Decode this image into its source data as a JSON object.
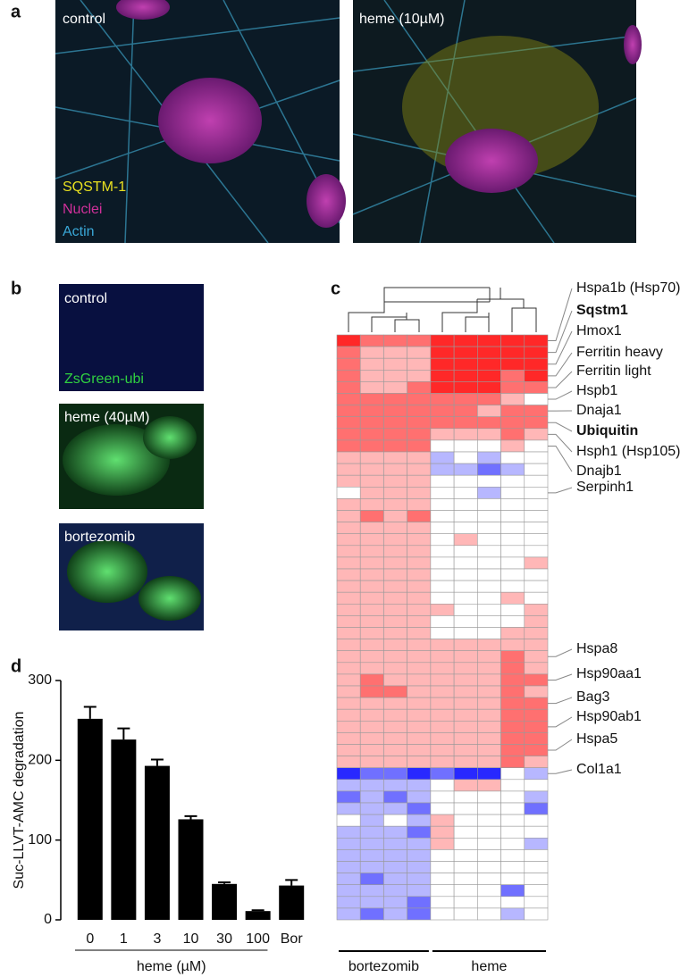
{
  "panel_labels": [
    "a",
    "b",
    "c",
    "d"
  ],
  "images_a": {
    "labels": [
      "control",
      "heme (10µM)"
    ],
    "legend": [
      {
        "name": "SQSTM-1",
        "color": "#e8e020"
      },
      {
        "name": "Nuclei",
        "color": "#d0309a"
      },
      {
        "name": "Actin",
        "color": "#3aa8d8"
      }
    ]
  },
  "images_b": {
    "labels": [
      "control",
      "heme (40µM)",
      "bortezomib"
    ],
    "reporter": {
      "name": "ZsGreen-ubi",
      "color": "#30d040"
    }
  },
  "chart_data": [
    {
      "type": "heatmap",
      "row_labels": [
        "Hspa1b (Hsp70)",
        "Sqstm1",
        "Hmox1",
        "Ferritin heavy",
        "Ferritin light",
        "Hspb1",
        "Dnaja1",
        "Ubiquitin",
        "Hsph1 (Hsp105)",
        "Dnajb1",
        null,
        null,
        null,
        "Serpinh1",
        null,
        null,
        null,
        null,
        null,
        null,
        null,
        null,
        null,
        null,
        null,
        null,
        null,
        "Hspa8",
        null,
        "Hsp90aa1",
        null,
        "Bag3",
        null,
        "Hsp90ab1",
        null,
        "Hspa5",
        null,
        "Col1a1",
        null,
        null,
        null,
        null,
        null,
        null,
        null,
        null,
        null,
        null,
        null,
        null
      ],
      "column_groups": [
        "bortezomib",
        "bortezomib",
        "bortezomib",
        "bortezomib",
        "heme",
        "heme",
        "heme",
        "heme",
        "heme"
      ],
      "values": [
        [
          3,
          2,
          2,
          2,
          3,
          3,
          3,
          3,
          3
        ],
        [
          2,
          1,
          1,
          1,
          3,
          3,
          3,
          3,
          3
        ],
        [
          2,
          1,
          1,
          1,
          3,
          3,
          3,
          3,
          3
        ],
        [
          2,
          1,
          1,
          1,
          3,
          3,
          3,
          2,
          3
        ],
        [
          2,
          1,
          1,
          2,
          3,
          3,
          3,
          2,
          2
        ],
        [
          2,
          2,
          2,
          2,
          2,
          2,
          2,
          1,
          0
        ],
        [
          2,
          2,
          2,
          2,
          2,
          2,
          1,
          2,
          2
        ],
        [
          2,
          2,
          2,
          2,
          2,
          2,
          2,
          2,
          2
        ],
        [
          2,
          2,
          2,
          2,
          1,
          1,
          1,
          2,
          1
        ],
        [
          2,
          2,
          2,
          2,
          0,
          0,
          0,
          1,
          0
        ],
        [
          1,
          1,
          1,
          1,
          -1,
          0,
          -1,
          0,
          0
        ],
        [
          1,
          1,
          1,
          1,
          -1,
          -1,
          -2,
          -1,
          0
        ],
        [
          1,
          1,
          1,
          1,
          0,
          0,
          0,
          0,
          0
        ],
        [
          0,
          1,
          1,
          1,
          0,
          0,
          -1,
          0,
          0
        ],
        [
          1,
          1,
          1,
          1,
          0,
          0,
          0,
          0,
          0
        ],
        [
          1,
          2,
          1,
          2,
          0,
          0,
          0,
          0,
          0
        ],
        [
          1,
          1,
          1,
          1,
          0,
          0,
          0,
          0,
          0
        ],
        [
          1,
          1,
          1,
          1,
          0,
          1,
          0,
          0,
          0
        ],
        [
          1,
          1,
          1,
          1,
          0,
          0,
          0,
          0,
          0
        ],
        [
          1,
          1,
          1,
          1,
          0,
          0,
          0,
          0,
          1
        ],
        [
          1,
          1,
          1,
          1,
          0,
          0,
          0,
          0,
          0
        ],
        [
          1,
          1,
          1,
          1,
          0,
          0,
          0,
          0,
          0
        ],
        [
          1,
          1,
          1,
          1,
          0,
          0,
          0,
          1,
          0
        ],
        [
          1,
          1,
          1,
          1,
          1,
          0,
          0,
          0,
          1
        ],
        [
          1,
          1,
          1,
          1,
          0,
          0,
          0,
          0,
          1
        ],
        [
          1,
          1,
          1,
          1,
          0,
          0,
          0,
          1,
          1
        ],
        [
          1,
          1,
          1,
          1,
          1,
          1,
          1,
          1,
          1
        ],
        [
          1,
          1,
          1,
          1,
          1,
          1,
          1,
          2,
          1
        ],
        [
          1,
          1,
          1,
          1,
          1,
          1,
          1,
          2,
          1
        ],
        [
          1,
          2,
          1,
          1,
          1,
          1,
          1,
          2,
          2
        ],
        [
          1,
          2,
          2,
          1,
          1,
          1,
          1,
          2,
          1
        ],
        [
          1,
          1,
          1,
          1,
          1,
          1,
          1,
          2,
          2
        ],
        [
          1,
          1,
          1,
          1,
          1,
          1,
          1,
          2,
          2
        ],
        [
          1,
          1,
          1,
          1,
          1,
          1,
          1,
          2,
          2
        ],
        [
          1,
          1,
          1,
          1,
          1,
          1,
          1,
          2,
          2
        ],
        [
          1,
          1,
          1,
          1,
          1,
          1,
          1,
          2,
          2
        ],
        [
          1,
          1,
          1,
          1,
          1,
          1,
          1,
          2,
          1
        ],
        [
          -3,
          -2,
          -2,
          -3,
          -2,
          -3,
          -3,
          0,
          -1
        ],
        [
          -1,
          -1,
          -1,
          -1,
          0,
          1,
          1,
          0,
          0
        ],
        [
          -2,
          -1,
          -2,
          -1,
          0,
          0,
          0,
          0,
          -1
        ],
        [
          -1,
          -1,
          -1,
          -2,
          0,
          0,
          0,
          0,
          -2
        ],
        [
          0,
          -1,
          0,
          -1,
          1,
          0,
          0,
          0,
          0
        ],
        [
          -1,
          -1,
          -1,
          -2,
          1,
          0,
          0,
          0,
          0
        ],
        [
          -1,
          -1,
          -1,
          -1,
          1,
          0,
          0,
          0,
          -1
        ],
        [
          -1,
          -1,
          -1,
          -1,
          0,
          0,
          0,
          0,
          0
        ],
        [
          -1,
          -1,
          -1,
          -1,
          0,
          0,
          0,
          0,
          0
        ],
        [
          -1,
          -2,
          -1,
          -1,
          0,
          0,
          0,
          0,
          0
        ],
        [
          -1,
          -1,
          -1,
          -1,
          0,
          0,
          0,
          -2,
          0
        ],
        [
          -1,
          -1,
          -1,
          -2,
          0,
          0,
          0,
          0,
          0
        ],
        [
          -1,
          -2,
          -1,
          -2,
          0,
          0,
          0,
          -1,
          0
        ]
      ]
    },
    {
      "type": "bar",
      "ylabel": "Suc-LLVT-AMC degradation",
      "xlabel": "heme (µM)",
      "categories": [
        "0",
        "1",
        "3",
        "10",
        "30",
        "100",
        "Bor"
      ],
      "values": [
        252,
        226,
        193,
        126,
        45,
        11,
        43
      ],
      "errors": [
        15,
        14,
        8,
        4,
        2,
        1,
        7
      ],
      "ylim": [
        0,
        300
      ],
      "yticks": [
        0,
        100,
        200,
        300
      ],
      "color": "#000000"
    }
  ]
}
